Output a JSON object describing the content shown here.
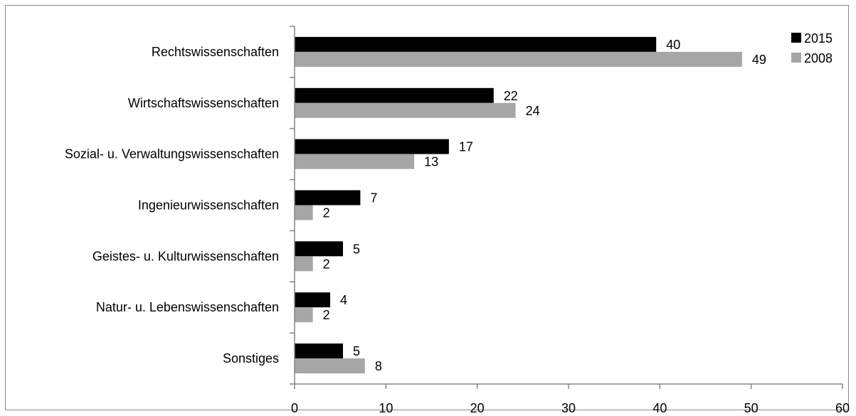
{
  "chart_data": {
    "type": "bar",
    "orientation": "horizontal",
    "categories": [
      "Rechtswissenschaften",
      "Wirtschaftswissenschaften",
      "Sozial- u. Verwaltungswissenschaften",
      "Ingenieurwissenschaften",
      "Geistes- u. Kulturwissenschaften",
      "Natur- u. Lebenswissenschaften",
      "Sonstiges"
    ],
    "series": [
      {
        "name": "2015",
        "color": "#000000",
        "values": [
          39.6,
          21.8,
          16.9,
          7.2,
          5.3,
          3.9,
          5.3
        ],
        "labels": [
          "40",
          "22",
          "17",
          "7",
          "5",
          "4",
          "5"
        ]
      },
      {
        "name": "2008",
        "color": "#a6a6a6",
        "values": [
          49.0,
          24.2,
          13.1,
          2.0,
          2.0,
          2.0,
          7.7
        ],
        "labels": [
          "49",
          "24",
          "13",
          "2",
          "2",
          "2",
          "8"
        ]
      }
    ],
    "xlim": [
      0,
      60
    ],
    "xticks": [
      "0",
      "10",
      "20",
      "30",
      "40",
      "50",
      "60"
    ],
    "title": "",
    "xlabel": "",
    "ylabel": "",
    "grid": false,
    "legend": "top-right"
  }
}
